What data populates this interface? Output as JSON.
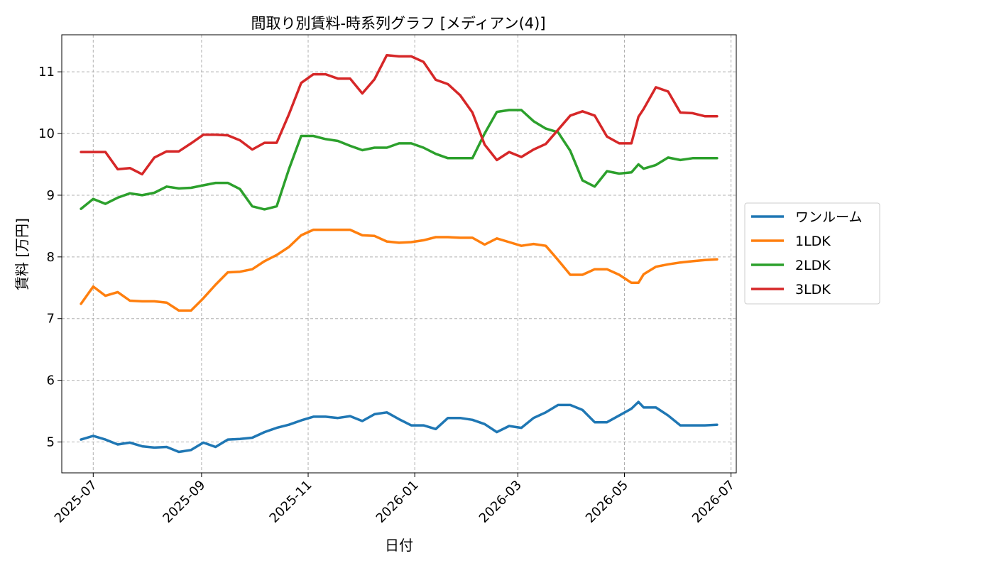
{
  "chart_data": {
    "type": "line",
    "title": "間取り別賃料-時系列グラフ [メディアン(4)]",
    "xlabel": "日付",
    "ylabel": "賃料 [万円]",
    "xlim": [
      "2025-06-13",
      "2026-07-04"
    ],
    "ylim": [
      4.5,
      11.6
    ],
    "grid": true,
    "legend": "center-right-outside",
    "x_ticks": [
      "2025-07-01",
      "2025-09-01",
      "2025-11-01",
      "2026-01-01",
      "2026-03-01",
      "2026-05-01",
      "2026-07-01"
    ],
    "x_tick_labels": [
      "2025-07",
      "2025-09",
      "2025-11",
      "2026-01",
      "2026-03",
      "2026-05",
      "2026-07"
    ],
    "y_ticks": [
      5,
      6,
      7,
      8,
      9,
      10,
      11
    ],
    "y_tick_labels": [
      "5",
      "6",
      "7",
      "8",
      "9",
      "10",
      "11"
    ],
    "x": [
      "2025-06-24",
      "2025-07-01",
      "2025-07-08",
      "2025-07-15",
      "2025-07-22",
      "2025-07-29",
      "2025-08-05",
      "2025-08-12",
      "2025-08-19",
      "2025-08-26",
      "2025-09-02",
      "2025-09-09",
      "2025-09-16",
      "2025-09-23",
      "2025-09-30",
      "2025-10-07",
      "2025-10-14",
      "2025-10-21",
      "2025-10-28",
      "2025-11-04",
      "2025-11-11",
      "2025-11-18",
      "2025-11-25",
      "2025-12-02",
      "2025-12-09",
      "2025-12-16",
      "2025-12-23",
      "2025-12-30",
      "2026-01-06",
      "2026-01-13",
      "2026-01-20",
      "2026-01-27",
      "2026-02-03",
      "2026-02-10",
      "2026-02-17",
      "2026-02-24",
      "2026-03-03",
      "2026-03-10",
      "2026-03-17",
      "2026-03-24",
      "2026-03-31",
      "2026-04-07",
      "2026-04-14",
      "2026-04-21",
      "2026-04-28",
      "2026-05-05",
      "2026-05-09",
      "2026-05-12",
      "2026-05-19",
      "2026-05-26",
      "2026-06-02",
      "2026-06-09",
      "2026-06-16",
      "2026-06-23"
    ],
    "series": [
      {
        "name": "ワンルーム",
        "color": "#1f77b4",
        "values": [
          5.04,
          5.1,
          5.04,
          4.96,
          4.99,
          4.93,
          4.91,
          4.92,
          4.84,
          4.87,
          4.99,
          4.92,
          5.04,
          5.05,
          5.07,
          5.16,
          5.23,
          5.28,
          5.35,
          5.41,
          5.41,
          5.39,
          5.42,
          5.34,
          5.45,
          5.48,
          5.37,
          5.27,
          5.27,
          5.21,
          5.39,
          5.39,
          5.36,
          5.29,
          5.16,
          5.26,
          5.23,
          5.39,
          5.48,
          5.6,
          5.6,
          5.52,
          5.32,
          5.32,
          5.43,
          5.54,
          5.65,
          5.56,
          5.56,
          5.43,
          5.27,
          5.27,
          5.27,
          5.28
        ]
      },
      {
        "name": "1LDK",
        "color": "#ff7f0e",
        "values": [
          7.24,
          7.52,
          7.37,
          7.43,
          7.29,
          7.28,
          7.28,
          7.26,
          7.13,
          7.13,
          7.33,
          7.55,
          7.75,
          7.76,
          7.8,
          7.93,
          8.03,
          8.16,
          8.35,
          8.44,
          8.44,
          8.44,
          8.44,
          8.35,
          8.34,
          8.25,
          8.23,
          8.24,
          8.27,
          8.32,
          8.32,
          8.31,
          8.31,
          8.2,
          8.3,
          8.24,
          8.18,
          8.21,
          8.18,
          7.95,
          7.71,
          7.71,
          7.8,
          7.8,
          7.71,
          7.58,
          7.58,
          7.72,
          7.84,
          7.88,
          7.91,
          7.93,
          7.95,
          7.96
        ]
      },
      {
        "name": "2LDK",
        "color": "#2ca02c",
        "values": [
          8.78,
          8.94,
          8.86,
          8.96,
          9.03,
          9.0,
          9.04,
          9.14,
          9.11,
          9.12,
          9.16,
          9.2,
          9.2,
          9.1,
          8.82,
          8.77,
          8.82,
          9.42,
          9.96,
          9.96,
          9.91,
          9.88,
          9.8,
          9.73,
          9.77,
          9.77,
          9.84,
          9.84,
          9.77,
          9.67,
          9.6,
          9.6,
          9.6,
          10.0,
          10.35,
          10.38,
          10.38,
          10.2,
          10.08,
          10.02,
          9.72,
          9.24,
          9.14,
          9.39,
          9.35,
          9.37,
          9.5,
          9.43,
          9.49,
          9.61,
          9.57,
          9.6,
          9.6,
          9.6
        ]
      },
      {
        "name": "3LDK",
        "color": "#d62728",
        "values": [
          9.7,
          9.7,
          9.7,
          9.42,
          9.44,
          9.34,
          9.61,
          9.71,
          9.71,
          9.84,
          9.98,
          9.98,
          9.97,
          9.89,
          9.74,
          9.85,
          9.85,
          10.31,
          10.82,
          10.96,
          10.96,
          10.89,
          10.89,
          10.65,
          10.88,
          11.27,
          11.25,
          11.25,
          11.16,
          10.87,
          10.8,
          10.62,
          10.34,
          9.82,
          9.57,
          9.7,
          9.62,
          9.74,
          9.83,
          10.06,
          10.29,
          10.36,
          10.29,
          9.95,
          9.84,
          9.84,
          10.27,
          10.4,
          10.75,
          10.68,
          10.34,
          10.33,
          10.28,
          10.28
        ]
      }
    ]
  }
}
